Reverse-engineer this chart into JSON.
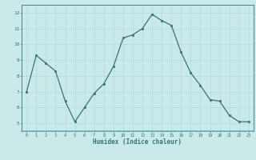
{
  "x": [
    0,
    1,
    2,
    3,
    4,
    5,
    6,
    7,
    8,
    9,
    10,
    11,
    12,
    13,
    14,
    15,
    16,
    17,
    18,
    19,
    20,
    21,
    22,
    23
  ],
  "y": [
    7.0,
    9.3,
    8.8,
    8.3,
    6.4,
    5.1,
    6.0,
    6.9,
    7.5,
    8.6,
    10.4,
    10.6,
    11.0,
    11.9,
    11.5,
    11.2,
    9.5,
    8.2,
    7.4,
    6.5,
    6.4,
    5.5,
    5.1,
    5.1
  ],
  "xlabel": "Humidex (Indice chaleur)",
  "ylim": [
    4.5,
    12.5
  ],
  "xlim": [
    -0.5,
    23.5
  ],
  "yticks": [
    5,
    6,
    7,
    8,
    9,
    10,
    11,
    12
  ],
  "xticks": [
    0,
    1,
    2,
    3,
    4,
    5,
    6,
    7,
    8,
    9,
    10,
    11,
    12,
    13,
    14,
    15,
    16,
    17,
    18,
    19,
    20,
    21,
    22,
    23
  ],
  "line_color": "#2d7a6e",
  "marker_color": "#2d7a6e",
  "bg_color": "#caeaea",
  "grid_color": "#aad8d4",
  "axis_color": "#2d7a6e",
  "label_color": "#2d7a6e",
  "tick_label_color": "#2d7a6e",
  "bottom_bar_color": "#5ab0a8"
}
